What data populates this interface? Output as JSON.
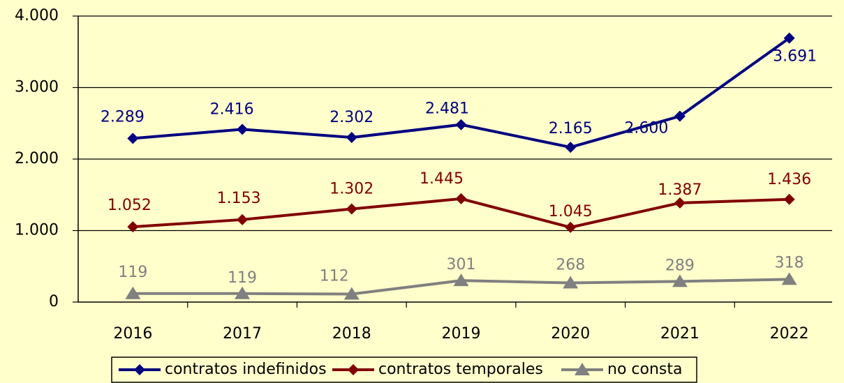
{
  "chart_data": {
    "type": "line",
    "categories": [
      "2016",
      "2017",
      "2018",
      "2019",
      "2020",
      "2021",
      "2022"
    ],
    "series": [
      {
        "name": "contratos indefinidos",
        "color": "#000080",
        "marker": "diamond",
        "values": [
          2289,
          2416,
          2302,
          2481,
          2165,
          2600,
          3691
        ],
        "value_labels": [
          "2.289",
          "2.416",
          "2.302",
          "2.481",
          "2.165",
          "2.600",
          "3.691"
        ]
      },
      {
        "name": "contratos temporales",
        "color": "#800000",
        "marker": "diamond",
        "values": [
          1052,
          1153,
          1302,
          1445,
          1045,
          1387,
          1436
        ],
        "value_labels": [
          "1.052",
          "1.153",
          "1.302",
          "1.445",
          "1.045",
          "1.387",
          "1.436"
        ]
      },
      {
        "name": "no consta",
        "color": "#808080",
        "marker": "triangle",
        "values": [
          119,
          119,
          112,
          301,
          268,
          289,
          318
        ]
      }
    ],
    "ylim": [
      0,
      4000
    ],
    "yticks": [
      0,
      {
        "value": 1000,
        "label": "1.000"
      },
      {
        "value": 2000,
        "label": "2.000"
      },
      {
        "value": 3000,
        "label": "3.000"
      },
      {
        "value": 4000,
        "label": "4.000"
      }
    ],
    "grid": true,
    "legend": "bottom"
  }
}
